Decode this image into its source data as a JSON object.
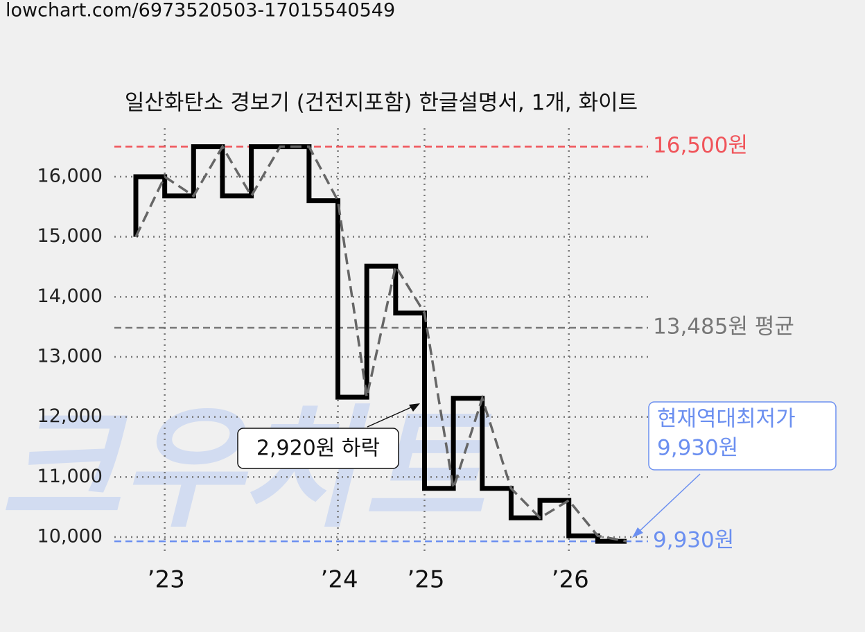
{
  "header": "lowchart.com/6973520503-17015540549",
  "chart_data": {
    "type": "step-line",
    "title": "일산화탄소 경보기 (건전지포함) 한글설명서, 1개, 화이트",
    "watermark": "크우차트",
    "categories": [
      null,
      "’23",
      null,
      null,
      null,
      null,
      null,
      "’24",
      null,
      null,
      "’25",
      null,
      null,
      null,
      null,
      "’26",
      null,
      null
    ],
    "series": [
      {
        "color": "#000000",
        "trend_color": "#666666",
        "values": [
          15000,
          16000,
          15680,
          16500,
          15680,
          16500,
          16500,
          15600,
          12330,
          14510,
          13730,
          10810,
          12310,
          10810,
          10320,
          10610,
          10020,
          9930
        ]
      }
    ],
    "ylim": [
      9850,
      16750
    ],
    "yticks": [
      {
        "value": 10000,
        "label": "10,000"
      },
      {
        "value": 11000,
        "label": "11,000"
      },
      {
        "value": 12000,
        "label": "12,000"
      },
      {
        "value": 13000,
        "label": "13,000"
      },
      {
        "value": 14000,
        "label": "14,000"
      },
      {
        "value": 15000,
        "label": "15,000"
      },
      {
        "value": 16000,
        "label": "16,000"
      }
    ],
    "grid": true,
    "reference_lines": [
      {
        "value": 16500,
        "label": "16,500원",
        "color": "#f0545a"
      },
      {
        "value": 13485,
        "label": "13,485원 평균",
        "color": "#777777"
      },
      {
        "value": 9930,
        "label": "9,930원",
        "color": "#6b8ff0"
      }
    ],
    "annotations": [
      {
        "text": "2,920원 하락"
      },
      {
        "lines": [
          "현재역대최저가",
          "9,930원"
        ],
        "color": "#6b8ff0"
      }
    ]
  }
}
